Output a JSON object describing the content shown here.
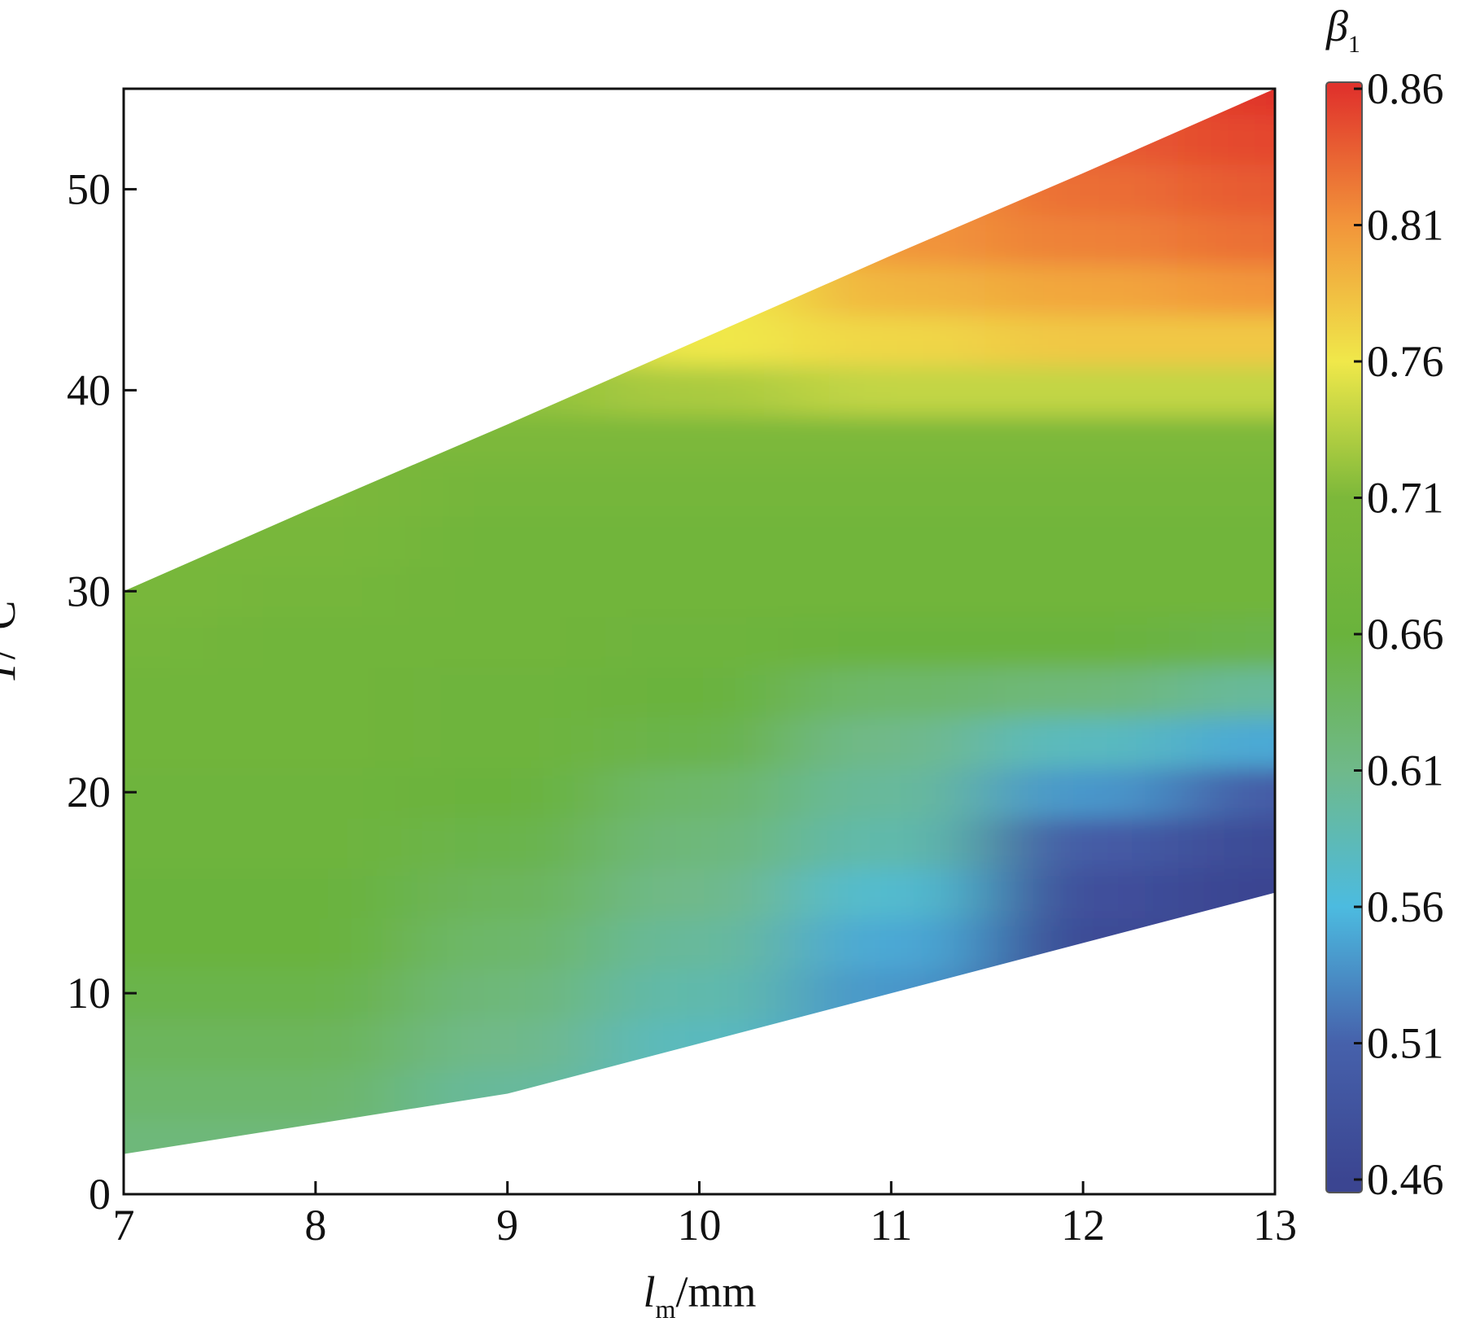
{
  "chart_data": {
    "type": "heatmap",
    "x": [
      7,
      8,
      9,
      10,
      11,
      12,
      13
    ],
    "y": [
      0,
      2.5,
      5,
      7.5,
      10,
      12.5,
      15,
      17.5,
      20,
      22.5,
      25,
      27.5,
      30,
      32.5,
      35,
      37.5,
      40,
      42.5,
      45,
      47.5,
      50,
      52.5,
      55
    ],
    "z": [
      [
        0.62,
        null,
        null,
        null,
        null,
        null,
        null
      ],
      [
        0.62,
        0.62,
        null,
        null,
        null,
        null,
        null
      ],
      [
        0.63,
        0.63,
        0.6,
        null,
        null,
        null,
        null
      ],
      [
        0.64,
        0.64,
        0.61,
        0.58,
        null,
        null,
        null
      ],
      [
        0.65,
        0.65,
        0.62,
        0.59,
        0.54,
        null,
        null
      ],
      [
        0.66,
        0.66,
        0.63,
        0.6,
        0.55,
        0.47,
        null
      ],
      [
        0.66,
        0.66,
        0.64,
        0.61,
        0.57,
        0.48,
        0.46
      ],
      [
        0.67,
        0.67,
        0.65,
        0.62,
        0.59,
        0.5,
        0.47
      ],
      [
        0.67,
        0.67,
        0.66,
        0.63,
        0.6,
        0.54,
        0.5
      ],
      [
        0.68,
        0.68,
        0.67,
        0.65,
        0.61,
        0.58,
        0.55
      ],
      [
        0.68,
        0.68,
        0.67,
        0.66,
        0.63,
        0.62,
        0.6
      ],
      [
        0.69,
        0.68,
        0.68,
        0.67,
        0.66,
        0.66,
        0.65
      ],
      [
        0.7,
        0.69,
        0.68,
        0.68,
        0.68,
        0.68,
        0.68
      ],
      [
        null,
        0.7,
        0.68,
        0.68,
        0.68,
        0.68,
        0.68
      ],
      [
        null,
        0.71,
        0.69,
        0.69,
        0.69,
        0.69,
        0.69
      ],
      [
        null,
        null,
        0.71,
        0.71,
        0.71,
        0.71,
        0.71
      ],
      [
        null,
        null,
        0.72,
        0.73,
        0.74,
        0.74,
        0.74
      ],
      [
        null,
        null,
        null,
        0.76,
        0.77,
        0.78,
        0.78
      ],
      [
        null,
        null,
        null,
        null,
        0.79,
        0.8,
        0.81
      ],
      [
        null,
        null,
        null,
        null,
        0.81,
        0.82,
        0.83
      ],
      [
        null,
        null,
        null,
        null,
        null,
        0.83,
        0.84
      ],
      [
        null,
        null,
        null,
        null,
        null,
        0.84,
        0.85
      ],
      [
        null,
        null,
        null,
        null,
        null,
        null,
        0.86
      ]
    ],
    "region": {
      "x": [
        7,
        8,
        9,
        10,
        11,
        12,
        13
      ],
      "upper": [
        30,
        34.2,
        38.3,
        42.5,
        46.7,
        50.8,
        55
      ],
      "lower": [
        2,
        3.5,
        5,
        7.5,
        10,
        12.5,
        15
      ]
    },
    "xlim": [
      7,
      13
    ],
    "ylim": [
      0,
      55
    ],
    "xticks": [
      7,
      8,
      9,
      10,
      11,
      12,
      13
    ],
    "yticks": [
      0,
      10,
      20,
      30,
      40,
      50
    ],
    "zlim": [
      0.46,
      0.86
    ],
    "zticks": [
      0.86,
      0.81,
      0.76,
      0.71,
      0.66,
      0.61,
      0.56,
      0.51,
      0.46
    ],
    "colors": [
      "#3b4591",
      "#4661ab",
      "#4cbbe0",
      "#6fb98a",
      "#6ab33c",
      "#7cb83a",
      "#f0e84a",
      "#f2953a",
      "#e0332c"
    ],
    "x_label": {
      "symbol": "l",
      "sub": "m",
      "unit": "/mm"
    },
    "y_label": {
      "symbol": "T",
      "unit": "/°C"
    },
    "colorbar_label": {
      "symbol": "β",
      "sub": "1"
    }
  }
}
